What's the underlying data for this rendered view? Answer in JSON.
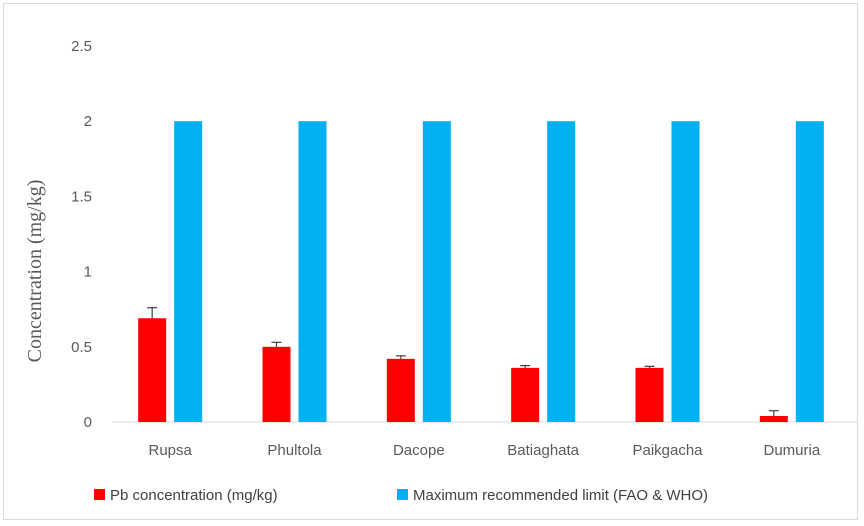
{
  "chart_data": {
    "type": "bar",
    "title": "",
    "xlabel": "",
    "ylabel": "Concentration (mg/kg)",
    "ylim": [
      0,
      2.5
    ],
    "yticks": [
      "0",
      "0.5",
      "1",
      "1.5",
      "2",
      "2.5"
    ],
    "categories": [
      "Rupsa",
      "Phultola",
      "Dacope",
      "Batiaghata",
      "Paikgacha",
      "Dumuria"
    ],
    "series": [
      {
        "name": "Pb concentration (mg/kg)",
        "color": "#ff0000",
        "values": [
          0.69,
          0.5,
          0.42,
          0.36,
          0.36,
          0.04
        ],
        "error": [
          0.07,
          0.03,
          0.02,
          0.015,
          0.01,
          0.035
        ]
      },
      {
        "name": "Maximum recommended limit (FAO & WHO)",
        "color": "#00b0f0",
        "values": [
          2,
          2,
          2,
          2,
          2,
          2
        ]
      }
    ],
    "grid": false,
    "legend": "bottom"
  }
}
